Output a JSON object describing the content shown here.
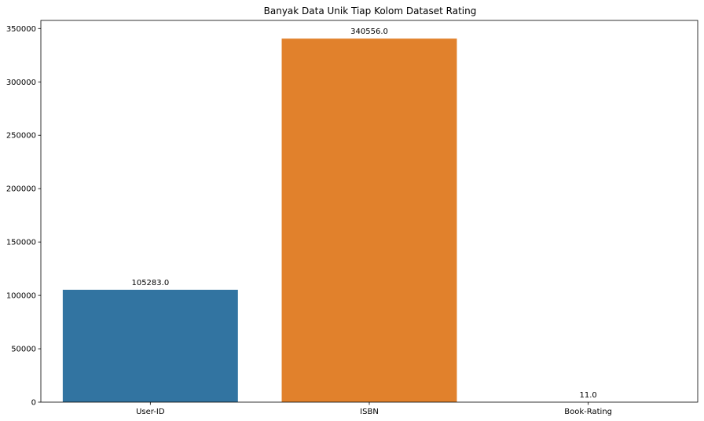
{
  "chart_data": {
    "type": "bar",
    "title": "Banyak Data Unik Tiap Kolom Dataset Rating",
    "xlabel": "",
    "ylabel": "",
    "categories": [
      "User-ID",
      "ISBN",
      "Book-Rating"
    ],
    "values": [
      105283,
      340556,
      11
    ],
    "data_labels": [
      "105283.0",
      "340556.0",
      "11.0"
    ],
    "colors": [
      "#3274a1",
      "#e1812c",
      "#3a923a"
    ],
    "ylim": [
      0,
      357584
    ],
    "yticks": [
      0,
      50000,
      100000,
      150000,
      200000,
      250000,
      300000,
      350000
    ],
    "ytick_labels": [
      "0",
      "50000",
      "100000",
      "150000",
      "200000",
      "250000",
      "300000",
      "350000"
    ],
    "grid": false,
    "legend": "none"
  }
}
